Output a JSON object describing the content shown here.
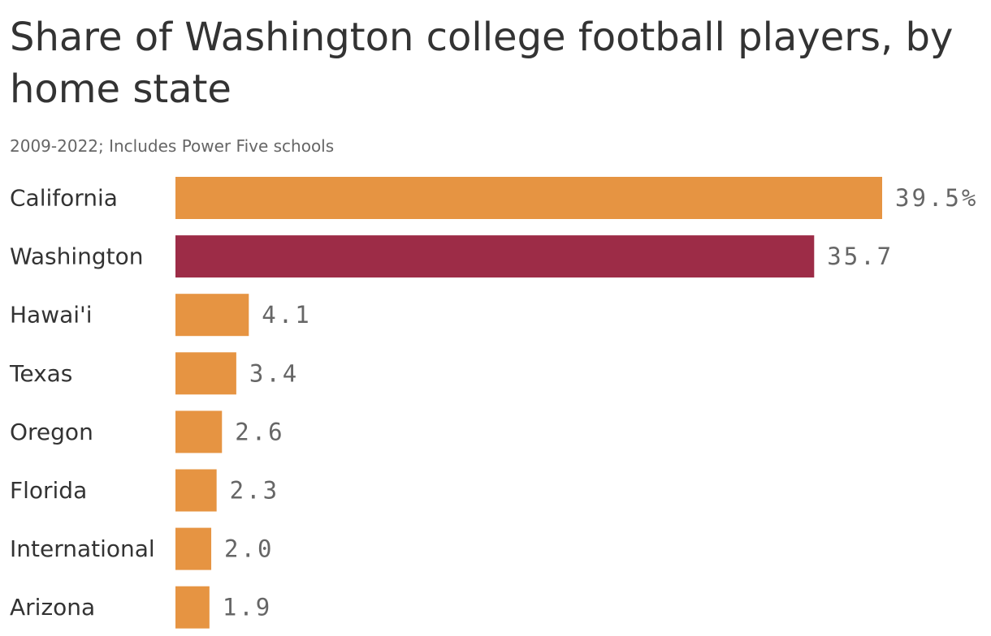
{
  "chart_data": {
    "type": "bar",
    "orientation": "horizontal",
    "title": "Share of Washington college football players, by home state",
    "subtitle": "2009-2022; Includes Power Five schools",
    "categories": [
      "California",
      "Washington",
      "Hawai'i",
      "Texas",
      "Oregon",
      "Florida",
      "International",
      "Arizona"
    ],
    "values": [
      39.5,
      35.7,
      4.1,
      3.4,
      2.6,
      2.3,
      2.0,
      1.9
    ],
    "value_labels": [
      "39.5%",
      "35.7",
      "4.1",
      "3.4",
      "2.6",
      "2.3",
      "2.0",
      "1.9"
    ],
    "highlight_category": "Washington",
    "colors": {
      "default": "#e69442",
      "highlight": "#9d2c47"
    },
    "xlim": [
      0,
      39.5
    ],
    "grid": false,
    "legend": "none"
  }
}
